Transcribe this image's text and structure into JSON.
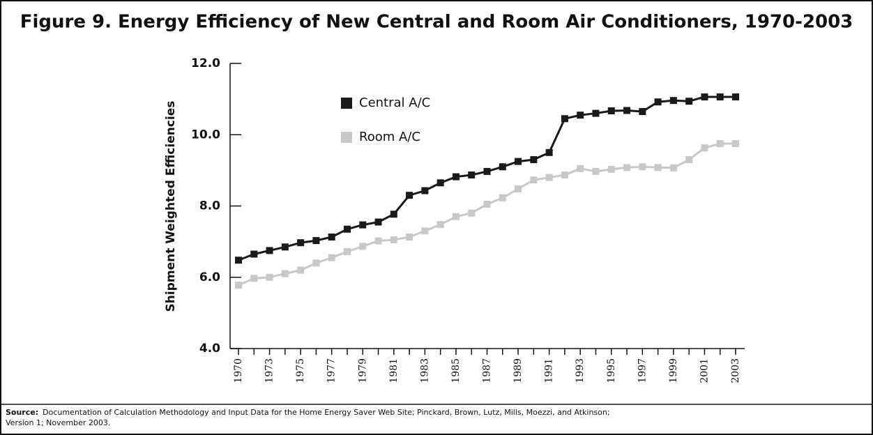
{
  "chart_data": {
    "type": "line",
    "title": "Figure 9. Energy Efficiency of New Central and Room Air Conditioners, 1970-2003",
    "ylabel": "Shipment Weighted Efficiencies",
    "categories": [
      "1970",
      null,
      "1973",
      null,
      "1975",
      null,
      "1977",
      null,
      "1979",
      null,
      "1981",
      null,
      "1983",
      null,
      "1985",
      null,
      "1987",
      null,
      "1989",
      null,
      "1991",
      null,
      "1993",
      null,
      "1995",
      null,
      "1997",
      null,
      "1999",
      null,
      "2001",
      null,
      "2003"
    ],
    "series": [
      {
        "name": "Central A/C",
        "color": "#1a1a1a",
        "values": [
          6.48,
          6.65,
          6.75,
          6.85,
          6.97,
          7.03,
          7.13,
          7.35,
          7.47,
          7.55,
          7.77,
          8.3,
          8.43,
          8.65,
          8.82,
          8.87,
          8.97,
          9.1,
          9.25,
          9.3,
          9.5,
          10.45,
          10.55,
          10.6,
          10.67,
          10.68,
          10.65,
          10.92,
          10.96,
          10.94,
          11.06,
          11.06,
          11.06
        ]
      },
      {
        "name": "Room A/C",
        "color": "#c8c8c8",
        "values": [
          5.78,
          5.97,
          6.0,
          6.1,
          6.2,
          6.4,
          6.55,
          6.72,
          6.87,
          7.02,
          7.05,
          7.13,
          7.3,
          7.48,
          7.7,
          7.8,
          8.05,
          8.23,
          8.48,
          8.73,
          8.8,
          8.87,
          9.05,
          8.97,
          9.03,
          9.08,
          9.1,
          9.08,
          9.07,
          9.3,
          9.63,
          9.75,
          9.75
        ]
      }
    ],
    "ylim": [
      4,
      12
    ],
    "yticks": [
      {
        "value": 4,
        "label": "4.0"
      },
      {
        "value": 6,
        "label": "6.0"
      },
      {
        "value": 8,
        "label": "8.0"
      },
      {
        "value": 10,
        "label": "10.0"
      },
      {
        "value": 12,
        "label": "12.0"
      }
    ],
    "source": {
      "label": "Source:",
      "lines": [
        "Documentation of Calculation Methodology and Input Data for the Home Energy Saver Web Site; Pinckard, Brown, Lutz, Mills, Moezzi, and Atkinson;",
        "Version 1; November 2003."
      ]
    }
  }
}
